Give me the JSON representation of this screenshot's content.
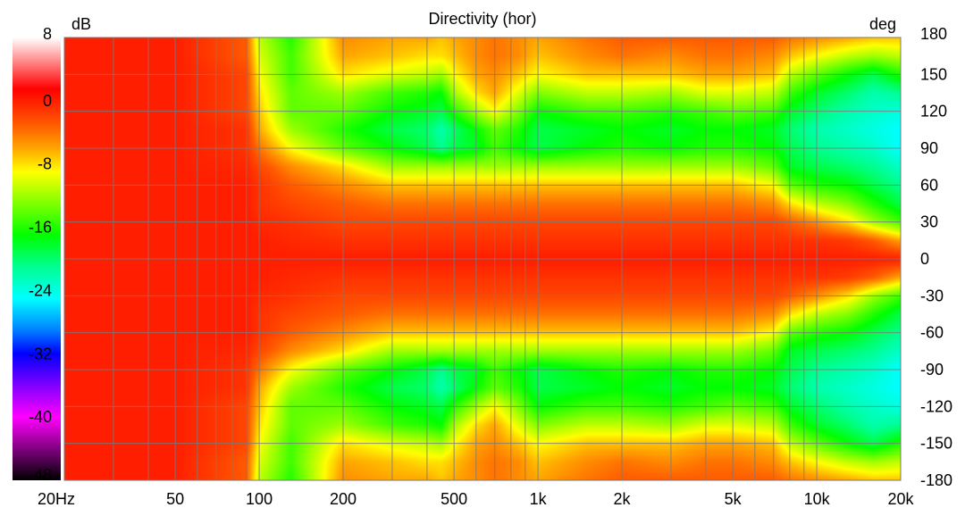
{
  "chart_data": {
    "type": "heatmap",
    "title": "Directivity (hor)",
    "colorbar": {
      "unit": "dB",
      "range": [
        -48,
        8
      ],
      "ticks": [
        8,
        0,
        -8,
        -16,
        -24,
        -32,
        -40,
        -48
      ],
      "tick_labels": [
        "8",
        "0",
        "-8",
        "-16",
        "-24",
        "-32",
        "-40",
        "-48"
      ],
      "colors": [
        {
          "value": 8,
          "color": "#ffffff"
        },
        {
          "value": 1.5,
          "color": "#ff0000"
        },
        {
          "value": -3,
          "color": "#ff5a00"
        },
        {
          "value": -6,
          "color": "#ffa500"
        },
        {
          "value": -9,
          "color": "#ffff00"
        },
        {
          "value": -13,
          "color": "#7fff00"
        },
        {
          "value": -17,
          "color": "#00ff00"
        },
        {
          "value": -21,
          "color": "#00ff90"
        },
        {
          "value": -25,
          "color": "#00ffff"
        },
        {
          "value": -29,
          "color": "#0080ff"
        },
        {
          "value": -32,
          "color": "#0000ff"
        },
        {
          "value": -36,
          "color": "#8000ff"
        },
        {
          "value": -40,
          "color": "#ff00ff"
        },
        {
          "value": -44,
          "color": "#800080"
        },
        {
          "value": -48,
          "color": "#000000"
        }
      ]
    },
    "x_axis": {
      "scale": "log",
      "range_hz": [
        20,
        20000
      ],
      "tick_values": [
        20,
        50,
        100,
        200,
        500,
        1000,
        2000,
        5000,
        10000,
        20000
      ],
      "tick_labels": [
        "20Hz",
        "50",
        "100",
        "200",
        "500",
        "1k",
        "2k",
        "5k",
        "10k",
        "20k"
      ],
      "grid_values": [
        20,
        30,
        40,
        50,
        60,
        70,
        80,
        90,
        100,
        200,
        300,
        400,
        500,
        600,
        700,
        800,
        900,
        1000,
        2000,
        3000,
        4000,
        5000,
        6000,
        7000,
        8000,
        9000,
        10000,
        20000
      ]
    },
    "y_axis": {
      "unit": "deg",
      "range": [
        -180,
        180
      ],
      "tick_values": [
        180,
        150,
        120,
        90,
        60,
        30,
        0,
        -30,
        -60,
        -90,
        -120,
        -150,
        -180
      ],
      "tick_labels": [
        "180",
        "150",
        "120",
        "90",
        "60",
        "30",
        "0",
        "-30",
        "-60",
        "-90",
        "-120",
        "-150",
        "-180"
      ]
    },
    "grid": true,
    "angles_deg": [
      0,
      15,
      30,
      45,
      60,
      75,
      90,
      105,
      120,
      135,
      150,
      165,
      180
    ],
    "frequencies_hz": [
      20,
      50,
      90,
      100,
      130,
      200,
      300,
      400,
      450,
      500,
      600,
      700,
      850,
      1000,
      1500,
      2000,
      3000,
      4000,
      5000,
      7000,
      8000,
      10000,
      13000,
      16000,
      20000
    ],
    "level_rows_db": [
      [
        0,
        0,
        0,
        0,
        0,
        0,
        0,
        0,
        0,
        0,
        0,
        0,
        0,
        0,
        0,
        0,
        0,
        0,
        0,
        0,
        0,
        0,
        0,
        0,
        0
      ],
      [
        0,
        0,
        0,
        0,
        -0.5,
        -1,
        -1,
        -1,
        -1,
        -1,
        -1,
        -1,
        -1,
        -1,
        -1,
        -1,
        -1,
        -1,
        -1,
        -1,
        -1,
        -1,
        -1.5,
        -3,
        -6
      ],
      [
        0,
        0,
        0,
        -0.5,
        -1,
        -2,
        -2,
        -2,
        -2,
        -2,
        -2,
        -2,
        -2,
        -2,
        -2,
        -2,
        -2,
        -2,
        -2,
        -2,
        -3,
        -5,
        -8,
        -12,
        -15
      ],
      [
        0,
        0,
        0,
        -1,
        -2,
        -3,
        -4,
        -4,
        -4,
        -4,
        -4,
        -4,
        -4,
        -4,
        -4,
        -4,
        -4,
        -4,
        -4,
        -5,
        -8,
        -11,
        -13,
        -16,
        -19
      ],
      [
        0,
        0,
        0,
        -1,
        -3,
        -5,
        -7,
        -7,
        -7,
        -7,
        -7,
        -7,
        -7,
        -7,
        -7,
        -7,
        -7,
        -7,
        -7,
        -9,
        -14,
        -16,
        -17,
        -19,
        -21
      ],
      [
        0,
        0,
        -0.5,
        -2,
        -5,
        -8,
        -12,
        -12,
        -12,
        -12,
        -12,
        -12,
        -12,
        -12,
        -12,
        -12,
        -12,
        -12,
        -12,
        -14,
        -18,
        -19,
        -20,
        -21,
        -23
      ],
      [
        0,
        0,
        -1,
        -4,
        -9,
        -14,
        -17,
        -19,
        -21,
        -19,
        -18,
        -15,
        -17,
        -19,
        -17,
        -16,
        -17,
        -16,
        -16,
        -17,
        -19,
        -21,
        -22,
        -23,
        -25
      ],
      [
        0,
        0,
        -1,
        -6,
        -12,
        -16,
        -19,
        -20,
        -22,
        -20,
        -17,
        -14,
        -16,
        -19,
        -18,
        -17,
        -18,
        -17,
        -17,
        -18,
        -20,
        -22,
        -23,
        -24,
        -25
      ],
      [
        0,
        0,
        -2,
        -7,
        -14,
        -14,
        -17,
        -18,
        -19,
        -16,
        -12,
        -9,
        -13,
        -17,
        -15,
        -15,
        -16,
        -15,
        -14,
        -15,
        -18,
        -20,
        -22,
        -23,
        -24
      ],
      [
        0,
        0,
        -2,
        -8,
        -14,
        -12,
        -15,
        -16,
        -17,
        -12,
        -8,
        -6,
        -10,
        -13,
        -11,
        -11,
        -12,
        -10,
        -10,
        -11,
        -15,
        -18,
        -20,
        -22,
        -21
      ],
      [
        0,
        0,
        -2,
        -9,
        -15,
        -8,
        -10,
        -11,
        -12,
        -9,
        -6,
        -5,
        -7,
        -9,
        -7,
        -7,
        -7,
        -6,
        -6,
        -7,
        -11,
        -14,
        -17,
        -19,
        -16
      ],
      [
        0,
        0,
        -3,
        -10,
        -15,
        -6,
        -7,
        -8,
        -8,
        -7,
        -5,
        -4,
        -5,
        -7,
        -5,
        -4,
        -5,
        -4,
        -4,
        -5,
        -7,
        -9,
        -11,
        -12,
        -11
      ],
      [
        0,
        0,
        -3,
        -11,
        -16,
        -5,
        -6,
        -6,
        -7,
        -6,
        -5,
        -4,
        -5,
        -6,
        -4,
        -3,
        -3,
        -3,
        -3,
        -3,
        -4,
        -5,
        -6,
        -7,
        -7
      ]
    ]
  }
}
